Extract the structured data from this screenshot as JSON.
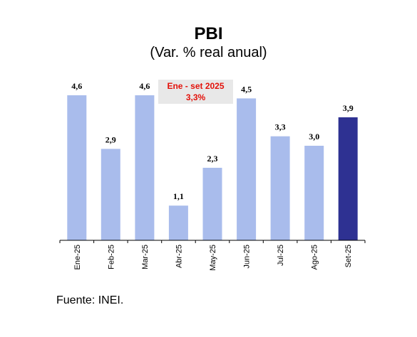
{
  "chart_data": {
    "type": "bar",
    "title": "PBI",
    "subtitle": "(Var. % real anual)",
    "categories": [
      "Ene-25",
      "Feb-25",
      "Mar-25",
      "Abr-25",
      "May-25",
      "Jun-25",
      "Jul-25",
      "Ago-25",
      "Set-25"
    ],
    "values": [
      4.6,
      2.9,
      4.6,
      1.1,
      2.3,
      4.5,
      3.3,
      3.0,
      3.9
    ],
    "data_labels": [
      "4,6",
      "2,9",
      "4,6",
      "1,1",
      "2,3",
      "4,5",
      "3,3",
      "3,0",
      "3,9"
    ],
    "ylim": [
      0,
      4.6
    ],
    "grid": false,
    "legend": "none",
    "colors": {
      "bar": "#a9bcec",
      "highlight_bar": "#2e3192",
      "axis": "#000000",
      "annotation_text": "#e3120b",
      "annotation_bg": "#e8e8e8"
    },
    "highlight_index": 8,
    "annotation": {
      "line1": "Ene - set 2025",
      "line2": "3,3%"
    }
  },
  "source": "Fuente: INEI."
}
